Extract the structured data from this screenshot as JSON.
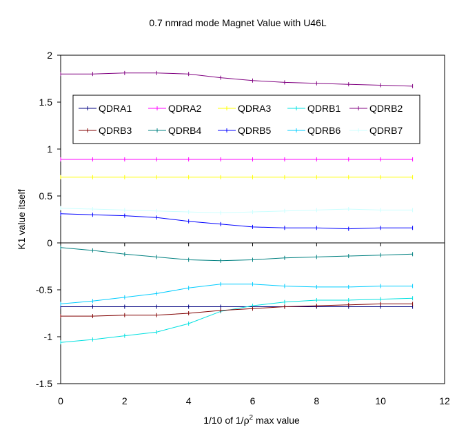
{
  "chart_data": {
    "type": "line",
    "title": "0.7 nmrad mode Magnet Value with U46L",
    "xlabel_pre": "1/10 of 1/",
    "xlabel_rho": "ρ",
    "xlabel_sup": "2",
    "xlabel_post": " max value",
    "ylabel": "K1 value itself",
    "xlim": [
      0,
      12
    ],
    "ylim": [
      -1.5,
      2
    ],
    "xticks": [
      "0",
      "2",
      "4",
      "6",
      "8",
      "10",
      "12"
    ],
    "yticks": [
      "2",
      "1.5",
      "1",
      "0.5",
      "0",
      "-0.5",
      "-1",
      "-1.5"
    ],
    "grid": false,
    "legend_position": "upper-center, inside plot",
    "x": [
      0,
      1,
      2,
      3,
      4,
      5,
      6,
      7,
      8,
      9,
      10,
      11
    ],
    "series": [
      {
        "name": "QDRA1",
        "color": "#000080",
        "values": [
          -0.68,
          -0.68,
          -0.68,
          -0.68,
          -0.68,
          -0.68,
          -0.68,
          -0.68,
          -0.68,
          -0.68,
          -0.68,
          -0.68
        ]
      },
      {
        "name": "QDRA2",
        "color": "#ff00ff",
        "values": [
          0.89,
          0.89,
          0.89,
          0.89,
          0.89,
          0.89,
          0.89,
          0.89,
          0.89,
          0.89,
          0.89,
          0.89
        ]
      },
      {
        "name": "QDRA3",
        "color": "#ffff00",
        "values": [
          0.7,
          0.7,
          0.7,
          0.7,
          0.7,
          0.7,
          0.7,
          0.7,
          0.7,
          0.7,
          0.7,
          0.7
        ]
      },
      {
        "name": "QDRB1",
        "color": "#00e0e0",
        "values": [
          -1.06,
          -1.03,
          -0.99,
          -0.95,
          -0.86,
          -0.73,
          -0.67,
          -0.63,
          -0.61,
          -0.61,
          -0.6,
          -0.59
        ]
      },
      {
        "name": "QDRB2",
        "color": "#800080",
        "values": [
          1.8,
          1.8,
          1.81,
          1.81,
          1.8,
          1.76,
          1.73,
          1.71,
          1.7,
          1.69,
          1.68,
          1.67
        ]
      },
      {
        "name": "QDRB3",
        "color": "#800000",
        "values": [
          -0.78,
          -0.78,
          -0.77,
          -0.77,
          -0.75,
          -0.72,
          -0.7,
          -0.68,
          -0.67,
          -0.66,
          -0.65,
          -0.65
        ]
      },
      {
        "name": "QDRB4",
        "color": "#008080",
        "values": [
          -0.05,
          -0.08,
          -0.12,
          -0.15,
          -0.18,
          -0.19,
          -0.18,
          -0.16,
          -0.15,
          -0.14,
          -0.13,
          -0.12
        ]
      },
      {
        "name": "QDRB5",
        "color": "#0000ff",
        "values": [
          0.31,
          0.3,
          0.29,
          0.27,
          0.23,
          0.2,
          0.17,
          0.16,
          0.16,
          0.15,
          0.16,
          0.16
        ]
      },
      {
        "name": "QDRB6",
        "color": "#00ccff",
        "values": [
          -0.65,
          -0.62,
          -0.58,
          -0.54,
          -0.48,
          -0.44,
          -0.44,
          -0.46,
          -0.47,
          -0.47,
          -0.46,
          -0.46
        ]
      },
      {
        "name": "QDRB7",
        "color": "#ccffff",
        "values": [
          0.37,
          0.36,
          0.35,
          0.34,
          0.33,
          0.32,
          0.33,
          0.34,
          0.35,
          0.36,
          0.35,
          0.35
        ]
      }
    ]
  }
}
